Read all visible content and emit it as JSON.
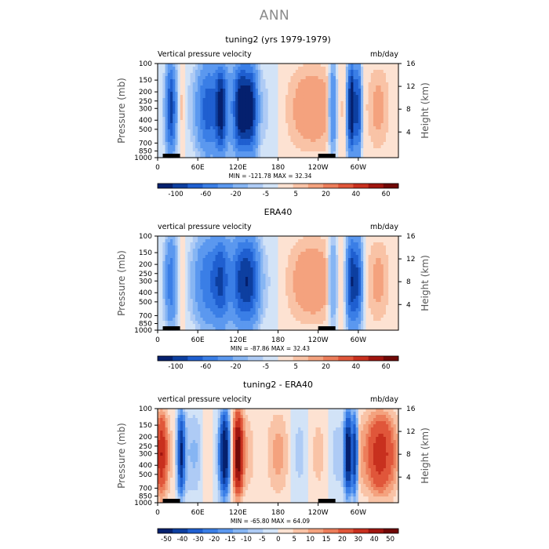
{
  "figure": {
    "title": "ANN"
  },
  "chart_data": [
    {
      "type": "heatmap",
      "title": "tuning2 (yrs 1979-1979)",
      "left_label": "Vertical pressure velocity",
      "right_label": "mb/day",
      "ylabel": "Pressure (mb)",
      "ylabel_right": "Height (km)",
      "y_ticks": [
        "100",
        "150",
        "200",
        "250",
        "300",
        "400",
        "500",
        "700",
        "850",
        "1000"
      ],
      "y_tick_values": [
        100,
        150,
        200,
        250,
        300,
        400,
        500,
        700,
        850,
        1000
      ],
      "y_right_ticks": [
        "16",
        "12",
        "8",
        "4"
      ],
      "y_right_tick_values": [
        16,
        12,
        8,
        4
      ],
      "x_ticks": [
        "0",
        "60E",
        "120E",
        "180",
        "120W",
        "60W"
      ],
      "x_tick_values": [
        0,
        60,
        120,
        180,
        240,
        300
      ],
      "xlim": [
        0,
        360
      ],
      "ylim": [
        1000,
        100
      ],
      "stats": "MIN = -121.78   MAX =  32.34",
      "colorbar_labels": [
        "-100",
        "-60",
        "-20",
        "-5",
        "5",
        "20",
        "40",
        "60"
      ],
      "colorbar_colors": [
        "#05206e",
        "#0d3fa0",
        "#1f5fd0",
        "#3a7ee6",
        "#5b98ef",
        "#86b5f3",
        "#aecbf5",
        "#d2e3f7",
        "#fde2d2",
        "#f9c3a6",
        "#f4a27e",
        "#ec7d5a",
        "#e0563a",
        "#c8301e",
        "#a0150f",
        "#700806"
      ],
      "domain": "diff-free"
    },
    {
      "type": "heatmap",
      "title": "ERA40",
      "left_label": "vertical pressure velocity",
      "right_label": "mb/day",
      "ylabel": "Pressure (mb)",
      "ylabel_right": "Height (km)",
      "y_ticks": [
        "100",
        "150",
        "200",
        "250",
        "300",
        "400",
        "500",
        "700",
        "850",
        "1000"
      ],
      "y_tick_values": [
        100,
        150,
        200,
        250,
        300,
        400,
        500,
        700,
        850,
        1000
      ],
      "y_right_ticks": [
        "16",
        "12",
        "8",
        "4"
      ],
      "y_right_tick_values": [
        16,
        12,
        8,
        4
      ],
      "x_ticks": [
        "0",
        "60E",
        "120E",
        "180",
        "120W",
        "60W"
      ],
      "x_tick_values": [
        0,
        60,
        120,
        180,
        240,
        300
      ],
      "xlim": [
        0,
        360
      ],
      "ylim": [
        1000,
        100
      ],
      "stats": "MIN = -87.86   MAX =  32.43",
      "colorbar_labels": [
        "-100",
        "-60",
        "-20",
        "-5",
        "5",
        "20",
        "40",
        "60"
      ],
      "colorbar_colors": [
        "#05206e",
        "#0d3fa0",
        "#1f5fd0",
        "#3a7ee6",
        "#5b98ef",
        "#86b5f3",
        "#aecbf5",
        "#d2e3f7",
        "#fde2d2",
        "#f9c3a6",
        "#f4a27e",
        "#ec7d5a",
        "#e0563a",
        "#c8301e",
        "#a0150f",
        "#700806"
      ]
    },
    {
      "type": "heatmap",
      "title": "tuning2 - ERA40",
      "left_label": "vertical pressure velocity",
      "right_label": "mb/day",
      "ylabel": "Pressure (mb)",
      "ylabel_right": "Height (km)",
      "y_ticks": [
        "100",
        "150",
        "200",
        "250",
        "300",
        "400",
        "500",
        "700",
        "850",
        "1000"
      ],
      "y_tick_values": [
        100,
        150,
        200,
        250,
        300,
        400,
        500,
        700,
        850,
        1000
      ],
      "y_right_ticks": [
        "16",
        "12",
        "8",
        "4"
      ],
      "y_right_tick_values": [
        16,
        12,
        8,
        4
      ],
      "x_ticks": [
        "0",
        "60E",
        "120E",
        "180",
        "120W",
        "60W"
      ],
      "x_tick_values": [
        0,
        60,
        120,
        180,
        240,
        300
      ],
      "xlim": [
        0,
        360
      ],
      "ylim": [
        1000,
        100
      ],
      "stats": "MIN = -65.80   MAX =  64.09",
      "colorbar_labels": [
        "-50",
        "-40",
        "-30",
        "-20",
        "-15",
        "-10",
        "-5",
        "0",
        "5",
        "10",
        "15",
        "20",
        "30",
        "40",
        "50"
      ],
      "colorbar_colors": [
        "#05206e",
        "#0d3fa0",
        "#1f5fd0",
        "#3a7ee6",
        "#5b98ef",
        "#86b5f3",
        "#aecbf5",
        "#d2e3f7",
        "#fde2d2",
        "#f9c3a6",
        "#f4a27e",
        "#ec7d5a",
        "#e0563a",
        "#c8301e",
        "#a0150f",
        "#700806"
      ]
    }
  ]
}
